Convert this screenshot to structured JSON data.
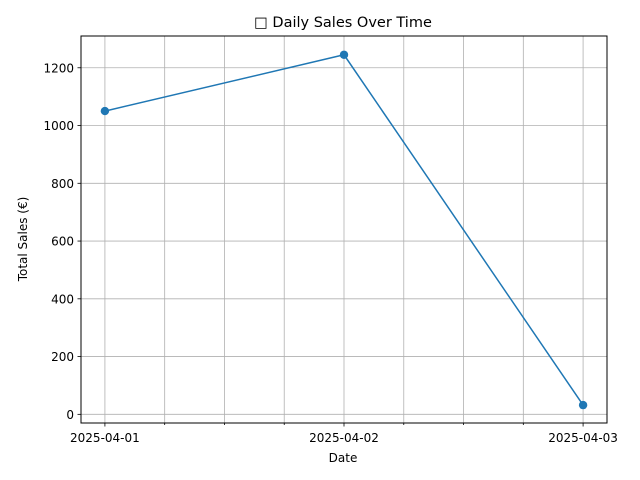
{
  "chart_data": {
    "type": "line",
    "title": "Daily Sales Over Time",
    "title_icon": "□",
    "xlabel": "Date",
    "ylabel": "Total Sales (€)",
    "categories": [
      "2025-04-01",
      "2025-04-02",
      "2025-04-03"
    ],
    "series": [
      {
        "name": "Total Sales",
        "values": [
          1050,
          1245,
          32
        ],
        "color": "#1f77b4",
        "marker": "circle"
      }
    ],
    "ylim": [
      -30,
      1310
    ],
    "yticks": [
      0,
      200,
      400,
      600,
      800,
      1000,
      1200
    ],
    "minor_x_ticks_per_interval": 3,
    "grid": true
  }
}
